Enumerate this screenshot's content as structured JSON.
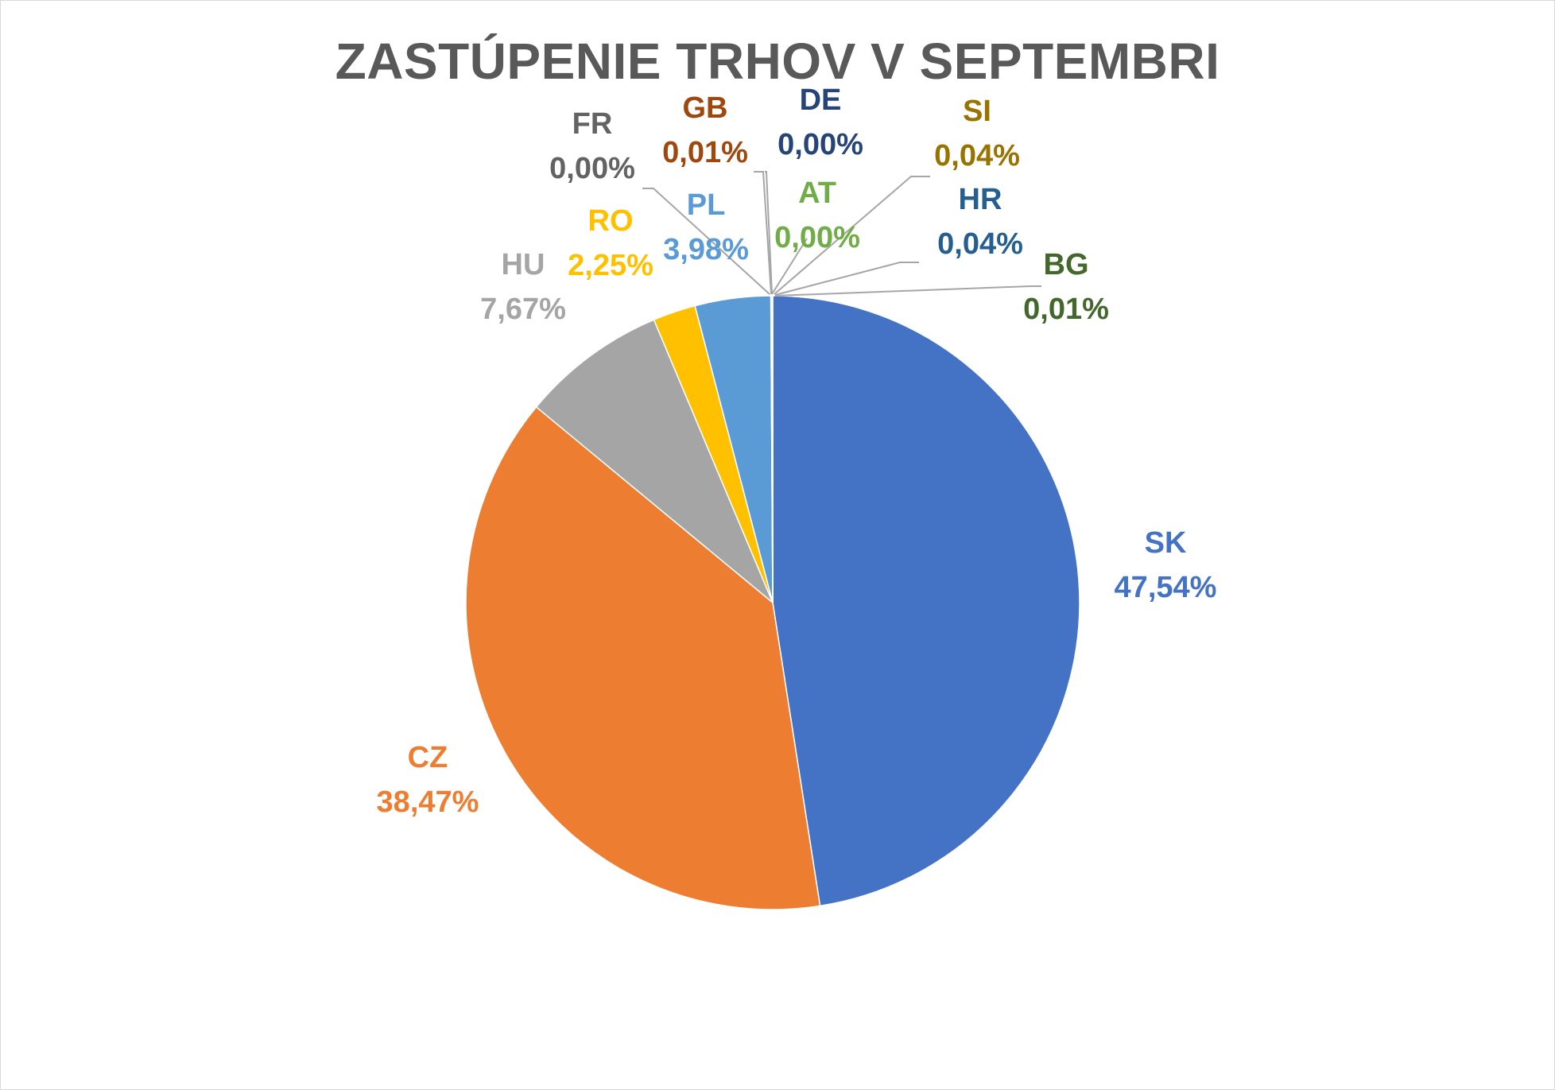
{
  "chart_data": {
    "type": "pie",
    "title": "ZASTÚPENIE TRHOV V SEPTEMBRI",
    "slices": [
      {
        "name": "SK",
        "value": 47.54,
        "label": "47,54%",
        "color": "#4472c4",
        "label_color": "#4472c4"
      },
      {
        "name": "CZ",
        "value": 38.47,
        "label": "38,47%",
        "color": "#ed7d31",
        "label_color": "#ed7d31"
      },
      {
        "name": "HU",
        "value": 7.67,
        "label": "7,67%",
        "color": "#a5a5a5",
        "label_color": "#a5a5a5"
      },
      {
        "name": "RO",
        "value": 2.25,
        "label": "2,25%",
        "color": "#ffc000",
        "label_color": "#ffc000"
      },
      {
        "name": "PL",
        "value": 3.98,
        "label": "3,98%",
        "color": "#5b9bd5",
        "label_color": "#5b9bd5"
      },
      {
        "name": "FR",
        "value": 0.0,
        "label": "0,00%",
        "color": "#636363",
        "label_color": "#636363"
      },
      {
        "name": "GB",
        "value": 0.01,
        "label": "0,01%",
        "color": "#9e480e",
        "label_color": "#9e480e"
      },
      {
        "name": "DE",
        "value": 0.0,
        "label": "0,00%",
        "color": "#264478",
        "label_color": "#264478"
      },
      {
        "name": "AT",
        "value": 0.0,
        "label": "0,00%",
        "color": "#70ad47",
        "label_color": "#70ad47"
      },
      {
        "name": "SI",
        "value": 0.04,
        "label": "0,04%",
        "color": "#997300",
        "label_color": "#997300"
      },
      {
        "name": "HR",
        "value": 0.04,
        "label": "0,04%",
        "color": "#255e91",
        "label_color": "#255e91"
      },
      {
        "name": "BG",
        "value": 0.01,
        "label": "0,01%",
        "color": "#43682b",
        "label_color": "#43682b"
      }
    ],
    "legend": "none",
    "leader_line_color": "#a6a6a6"
  }
}
